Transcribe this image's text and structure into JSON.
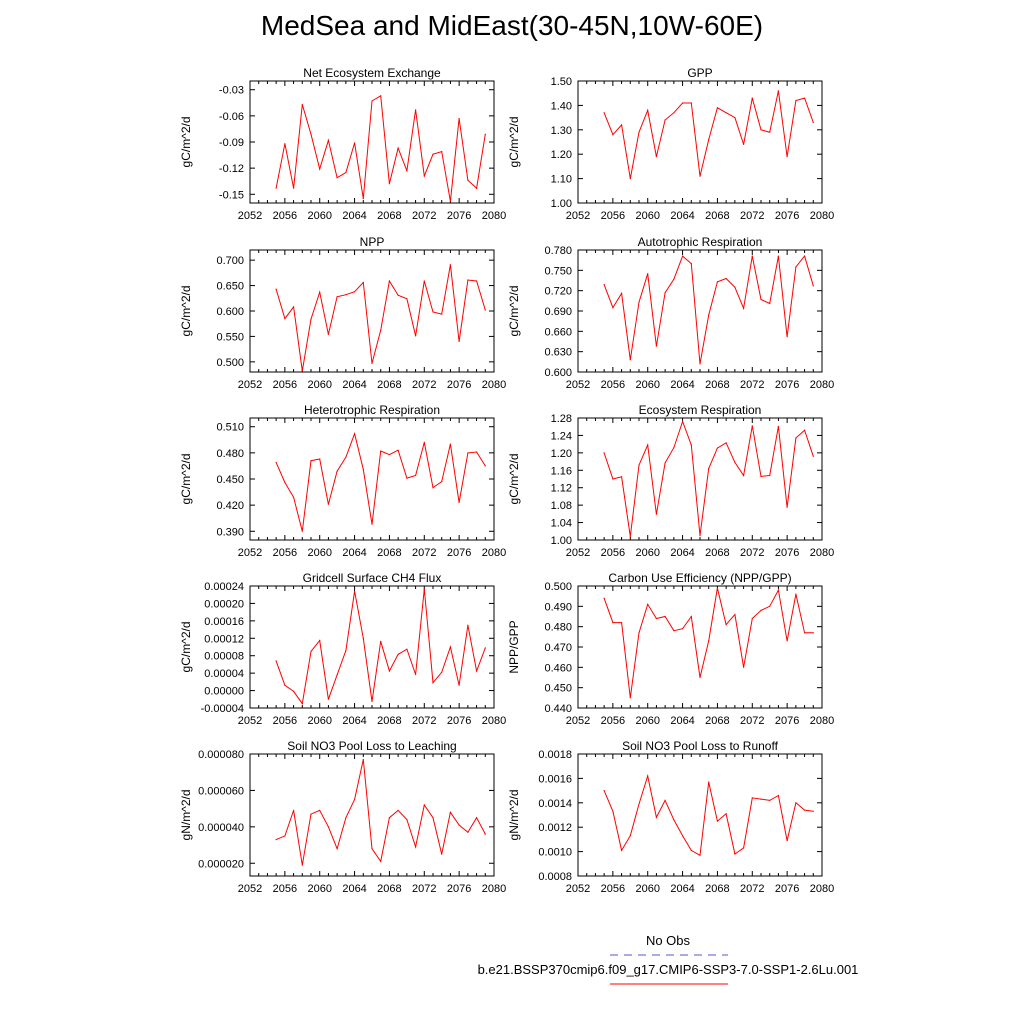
{
  "title": "MedSea and MidEast(30-45N,10W-60E)",
  "colors": {
    "series": "#ff0000",
    "obs": "#5555cc",
    "axis": "#000000"
  },
  "legend": {
    "obs_label": "No Obs",
    "run_label": "b.e21.BSSP370cmip6.f09_g17.CMIP6-SSP3-7.0-SSP1-2.6Lu.001"
  },
  "chart_data": [
    {
      "type": "line",
      "title": "Net Ecosystem Exchange",
      "ylabel": "gC/m^2/d",
      "xlim": [
        2052,
        2080
      ],
      "ylim": [
        -0.16,
        -0.02
      ],
      "xticks": [
        "2052",
        "2056",
        "2060",
        "2064",
        "2068",
        "2072",
        "2076",
        "2080"
      ],
      "yticks": [
        "-0.03",
        "-0.06",
        "-0.09",
        "-0.12",
        "-0.15"
      ],
      "x": [
        2055,
        2056,
        2057,
        2058,
        2059,
        2060,
        2061,
        2062,
        2063,
        2064,
        2065,
        2066,
        2067,
        2068,
        2069,
        2070,
        2071,
        2072,
        2073,
        2074,
        2075,
        2076,
        2077,
        2078,
        2079
      ],
      "values": [
        -0.143,
        -0.092,
        -0.143,
        -0.047,
        -0.081,
        -0.121,
        -0.088,
        -0.131,
        -0.125,
        -0.091,
        -0.155,
        -0.043,
        -0.037,
        -0.138,
        -0.097,
        -0.123,
        -0.053,
        -0.129,
        -0.104,
        -0.101,
        -0.158,
        -0.063,
        -0.134,
        -0.143,
        -0.081
      ]
    },
    {
      "type": "line",
      "title": "GPP",
      "ylabel": "gC/m^2/d",
      "xlim": [
        2052,
        2080
      ],
      "ylim": [
        1.0,
        1.5
      ],
      "xticks": [
        "2052",
        "2056",
        "2060",
        "2064",
        "2068",
        "2072",
        "2076",
        "2080"
      ],
      "yticks": [
        "1.50",
        "1.40",
        "1.30",
        "1.20",
        "1.10",
        "1.00"
      ],
      "x": [
        2055,
        2056,
        2057,
        2058,
        2059,
        2060,
        2061,
        2062,
        2063,
        2064,
        2065,
        2066,
        2067,
        2068,
        2069,
        2070,
        2071,
        2072,
        2073,
        2074,
        2075,
        2076,
        2077,
        2078,
        2079
      ],
      "values": [
        1.37,
        1.28,
        1.32,
        1.1,
        1.29,
        1.38,
        1.19,
        1.34,
        1.37,
        1.41,
        1.41,
        1.11,
        1.26,
        1.39,
        1.37,
        1.35,
        1.24,
        1.43,
        1.3,
        1.29,
        1.46,
        1.19,
        1.42,
        1.43,
        1.33
      ]
    },
    {
      "type": "line",
      "title": "NPP",
      "ylabel": "gC/m^2/d",
      "xlim": [
        2052,
        2080
      ],
      "ylim": [
        0.48,
        0.72
      ],
      "xticks": [
        "2052",
        "2056",
        "2060",
        "2064",
        "2068",
        "2072",
        "2076",
        "2080"
      ],
      "yticks": [
        "0.700",
        "0.650",
        "0.600",
        "0.550",
        "0.500"
      ],
      "x": [
        2055,
        2056,
        2057,
        2058,
        2059,
        2060,
        2061,
        2062,
        2063,
        2064,
        2065,
        2066,
        2067,
        2068,
        2069,
        2070,
        2071,
        2072,
        2073,
        2074,
        2075,
        2076,
        2077,
        2078,
        2079
      ],
      "values": [
        0.643,
        0.585,
        0.608,
        0.482,
        0.584,
        0.637,
        0.554,
        0.628,
        0.632,
        0.638,
        0.656,
        0.497,
        0.562,
        0.659,
        0.631,
        0.624,
        0.551,
        0.659,
        0.598,
        0.594,
        0.691,
        0.54,
        0.661,
        0.659,
        0.602
      ]
    },
    {
      "type": "line",
      "title": "Autotrophic Respiration",
      "ylabel": "gC/m^2/d",
      "xlim": [
        2052,
        2080
      ],
      "ylim": [
        0.6,
        0.78
      ],
      "xticks": [
        "2052",
        "2056",
        "2060",
        "2064",
        "2068",
        "2072",
        "2076",
        "2080"
      ],
      "yticks": [
        "0.780",
        "0.750",
        "0.720",
        "0.690",
        "0.660",
        "0.630",
        "0.600"
      ],
      "x": [
        2055,
        2056,
        2057,
        2058,
        2059,
        2060,
        2061,
        2062,
        2063,
        2064,
        2065,
        2066,
        2067,
        2068,
        2069,
        2070,
        2071,
        2072,
        2073,
        2074,
        2075,
        2076,
        2077,
        2078,
        2079
      ],
      "values": [
        0.729,
        0.695,
        0.716,
        0.618,
        0.703,
        0.745,
        0.638,
        0.717,
        0.737,
        0.771,
        0.76,
        0.612,
        0.684,
        0.733,
        0.738,
        0.725,
        0.694,
        0.771,
        0.707,
        0.701,
        0.771,
        0.652,
        0.755,
        0.771,
        0.727
      ]
    },
    {
      "type": "line",
      "title": "Heterotrophic Respiration",
      "ylabel": "gC/m^2/d",
      "xlim": [
        2052,
        2080
      ],
      "ylim": [
        0.38,
        0.52
      ],
      "xticks": [
        "2052",
        "2056",
        "2060",
        "2064",
        "2068",
        "2072",
        "2076",
        "2080"
      ],
      "yticks": [
        "0.510",
        "0.480",
        "0.450",
        "0.420",
        "0.390"
      ],
      "x": [
        2055,
        2056,
        2057,
        2058,
        2059,
        2060,
        2061,
        2062,
        2063,
        2064,
        2065,
        2066,
        2067,
        2068,
        2069,
        2070,
        2071,
        2072,
        2073,
        2074,
        2075,
        2076,
        2077,
        2078,
        2079
      ],
      "values": [
        0.469,
        0.446,
        0.429,
        0.39,
        0.471,
        0.473,
        0.421,
        0.459,
        0.475,
        0.502,
        0.461,
        0.398,
        0.482,
        0.478,
        0.483,
        0.451,
        0.454,
        0.492,
        0.44,
        0.447,
        0.49,
        0.423,
        0.48,
        0.481,
        0.465
      ]
    },
    {
      "type": "line",
      "title": "Ecosystem Respiration",
      "ylabel": "gC/m^2/d",
      "xlim": [
        2052,
        2080
      ],
      "ylim": [
        1.0,
        1.28
      ],
      "xticks": [
        "2052",
        "2056",
        "2060",
        "2064",
        "2068",
        "2072",
        "2076",
        "2080"
      ],
      "yticks": [
        "1.28",
        "1.24",
        "1.20",
        "1.16",
        "1.12",
        "1.08",
        "1.04",
        "1.00"
      ],
      "x": [
        2055,
        2056,
        2057,
        2058,
        2059,
        2060,
        2061,
        2062,
        2063,
        2064,
        2065,
        2066,
        2067,
        2068,
        2069,
        2070,
        2071,
        2072,
        2073,
        2074,
        2075,
        2076,
        2077,
        2078,
        2079
      ],
      "values": [
        1.2,
        1.14,
        1.145,
        1.008,
        1.172,
        1.218,
        1.059,
        1.177,
        1.212,
        1.272,
        1.218,
        1.01,
        1.164,
        1.211,
        1.223,
        1.178,
        1.148,
        1.262,
        1.146,
        1.148,
        1.261,
        1.075,
        1.234,
        1.252,
        1.192
      ]
    },
    {
      "type": "line",
      "title": "Gridcell Surface CH4 Flux",
      "ylabel": "gC/m^2/d",
      "xlim": [
        2052,
        2080
      ],
      "ylim": [
        -4e-05,
        0.00024
      ],
      "xticks": [
        "2052",
        "2056",
        "2060",
        "2064",
        "2068",
        "2072",
        "2076",
        "2080"
      ],
      "yticks": [
        "0.00024",
        "0.00020",
        "0.00016",
        "0.00012",
        "0.00008",
        "0.00004",
        "0.00000",
        "-0.00004"
      ],
      "x": [
        2055,
        2056,
        2057,
        2058,
        2059,
        2060,
        2061,
        2062,
        2063,
        2064,
        2065,
        2066,
        2067,
        2068,
        2069,
        2070,
        2071,
        2072,
        2073,
        2074,
        2075,
        2076,
        2077,
        2078,
        2079
      ],
      "values": [
        6.8e-05,
        1.2e-05,
        -2e-06,
        -3e-05,
        9e-05,
        0.000115,
        -2e-05,
        3.6e-05,
        9.2e-05,
        0.000228,
        0.00012,
        -2.5e-05,
        0.000113,
        4.5e-05,
        8.3e-05,
        9.5e-05,
        3.7e-05,
        0.000233,
        1.8e-05,
        4.2e-05,
        0.0001,
        1.2e-05,
        0.00015,
        4.5e-05,
        9.8e-05
      ]
    },
    {
      "type": "line",
      "title": "Carbon Use Efficiency (NPP/GPP)",
      "ylabel": "NPP/GPP",
      "xlim": [
        2052,
        2080
      ],
      "ylim": [
        0.44,
        0.5
      ],
      "xticks": [
        "2052",
        "2056",
        "2060",
        "2064",
        "2068",
        "2072",
        "2076",
        "2080"
      ],
      "yticks": [
        "0.500",
        "0.490",
        "0.480",
        "0.470",
        "0.460",
        "0.450",
        "0.440"
      ],
      "x": [
        2055,
        2056,
        2057,
        2058,
        2059,
        2060,
        2061,
        2062,
        2063,
        2064,
        2065,
        2066,
        2067,
        2068,
        2069,
        2070,
        2071,
        2072,
        2073,
        2074,
        2075,
        2076,
        2077,
        2078,
        2079
      ],
      "values": [
        0.494,
        0.482,
        0.482,
        0.445,
        0.477,
        0.491,
        0.484,
        0.485,
        0.478,
        0.479,
        0.485,
        0.455,
        0.473,
        0.499,
        0.481,
        0.486,
        0.46,
        0.484,
        0.488,
        0.49,
        0.498,
        0.473,
        0.496,
        0.477,
        0.477
      ]
    },
    {
      "type": "line",
      "title": "Soil NO3 Pool Loss to Leaching",
      "ylabel": "gN/m^2/d",
      "xlim": [
        2052,
        2080
      ],
      "ylim": [
        1.3e-05,
        8e-05
      ],
      "xticks": [
        "2052",
        "2056",
        "2060",
        "2064",
        "2068",
        "2072",
        "2076",
        "2080"
      ],
      "yticks": [
        "0.000080",
        "0.000060",
        "0.000040",
        "0.000020"
      ],
      "x": [
        2055,
        2056,
        2057,
        2058,
        2059,
        2060,
        2061,
        2062,
        2063,
        2064,
        2065,
        2066,
        2067,
        2068,
        2069,
        2070,
        2071,
        2072,
        2073,
        2074,
        2075,
        2076,
        2077,
        2078,
        2079
      ],
      "values": [
        3.3e-05,
        3.5e-05,
        4.9e-05,
        1.9e-05,
        4.7e-05,
        4.9e-05,
        4e-05,
        2.8e-05,
        4.5e-05,
        5.5e-05,
        7.7e-05,
        2.8e-05,
        2.1e-05,
        4.5e-05,
        4.9e-05,
        4.4e-05,
        2.9e-05,
        5.2e-05,
        4.5e-05,
        2.5e-05,
        4.8e-05,
        4.1e-05,
        3.7e-05,
        4.5e-05,
        3.6e-05
      ]
    },
    {
      "type": "line",
      "title": "Soil NO3 Pool Loss to Runoff",
      "ylabel": "gN/m^2/d",
      "xlim": [
        2052,
        2080
      ],
      "ylim": [
        0.0008,
        0.0018
      ],
      "xticks": [
        "2052",
        "2056",
        "2060",
        "2064",
        "2068",
        "2072",
        "2076",
        "2080"
      ],
      "yticks": [
        "0.0018",
        "0.0016",
        "0.0014",
        "0.0012",
        "0.0010",
        "0.0008"
      ],
      "x": [
        2055,
        2056,
        2057,
        2058,
        2059,
        2060,
        2061,
        2062,
        2063,
        2064,
        2065,
        2066,
        2067,
        2068,
        2069,
        2070,
        2071,
        2072,
        2073,
        2074,
        2075,
        2076,
        2077,
        2078,
        2079
      ],
      "values": [
        0.0015,
        0.00133,
        0.00101,
        0.00113,
        0.00139,
        0.00162,
        0.00128,
        0.00142,
        0.00126,
        0.00113,
        0.00101,
        0.00097,
        0.00157,
        0.00125,
        0.00131,
        0.00098,
        0.00103,
        0.00144,
        0.00143,
        0.00142,
        0.00146,
        0.00109,
        0.0014,
        0.00134,
        0.00133
      ]
    }
  ]
}
